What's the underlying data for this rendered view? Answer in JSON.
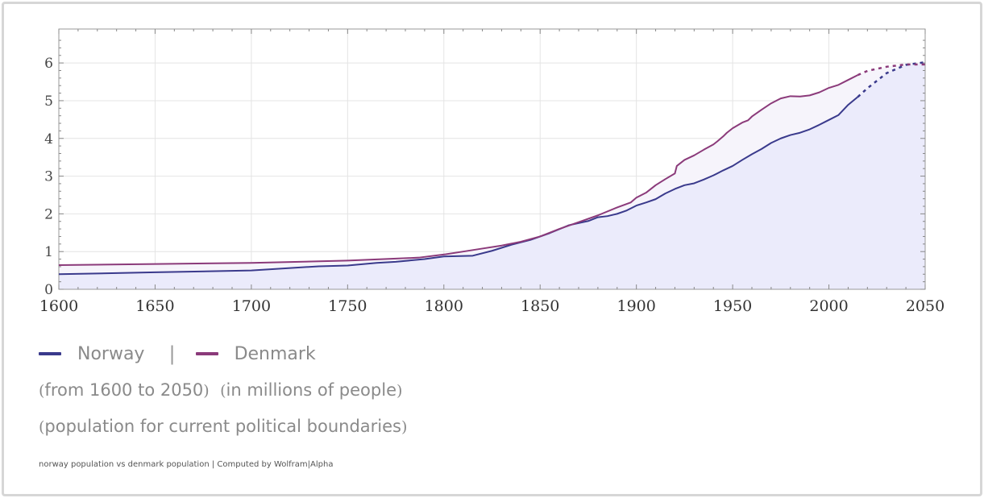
{
  "chart_data": {
    "type": "line",
    "title": "",
    "xlabel": "",
    "ylabel": "",
    "xlim": [
      1600,
      2050
    ],
    "ylim": [
      0,
      6.9
    ],
    "x_ticks": [
      "1600",
      "1650",
      "1700",
      "1750",
      "1800",
      "1850",
      "1900",
      "1950",
      "2000",
      "2050"
    ],
    "y_ticks": [
      "0",
      "1",
      "2",
      "3",
      "4",
      "5",
      "6"
    ],
    "grid": true,
    "projection_start_year": 2015,
    "series": [
      {
        "name": "Norway",
        "color": "#3a3a8c",
        "points": [
          [
            1600,
            0.4
          ],
          [
            1650,
            0.45
          ],
          [
            1700,
            0.5
          ],
          [
            1735,
            0.61
          ],
          [
            1750,
            0.63
          ],
          [
            1765,
            0.7
          ],
          [
            1775,
            0.73
          ],
          [
            1790,
            0.8
          ],
          [
            1800,
            0.87
          ],
          [
            1815,
            0.89
          ],
          [
            1825,
            1.02
          ],
          [
            1835,
            1.18
          ],
          [
            1845,
            1.31
          ],
          [
            1855,
            1.49
          ],
          [
            1865,
            1.7
          ],
          [
            1875,
            1.81
          ],
          [
            1880,
            1.91
          ],
          [
            1885,
            1.94
          ],
          [
            1890,
            2.0
          ],
          [
            1895,
            2.09
          ],
          [
            1900,
            2.22
          ],
          [
            1905,
            2.3
          ],
          [
            1910,
            2.39
          ],
          [
            1915,
            2.54
          ],
          [
            1920,
            2.66
          ],
          [
            1925,
            2.76
          ],
          [
            1930,
            2.81
          ],
          [
            1935,
            2.91
          ],
          [
            1940,
            3.02
          ],
          [
            1945,
            3.15
          ],
          [
            1950,
            3.27
          ],
          [
            1955,
            3.43
          ],
          [
            1960,
            3.58
          ],
          [
            1965,
            3.72
          ],
          [
            1970,
            3.88
          ],
          [
            1975,
            4.0
          ],
          [
            1980,
            4.09
          ],
          [
            1985,
            4.15
          ],
          [
            1990,
            4.24
          ],
          [
            1995,
            4.36
          ],
          [
            2000,
            4.49
          ],
          [
            2005,
            4.62
          ],
          [
            2010,
            4.89
          ],
          [
            2015,
            5.1
          ],
          [
            2020,
            5.33
          ],
          [
            2030,
            5.73
          ],
          [
            2040,
            5.95
          ],
          [
            2050,
            6.02
          ]
        ]
      },
      {
        "name": "Denmark",
        "color": "#8b3a7a",
        "points": [
          [
            1600,
            0.64
          ],
          [
            1650,
            0.67
          ],
          [
            1700,
            0.7
          ],
          [
            1750,
            0.76
          ],
          [
            1769,
            0.8
          ],
          [
            1787,
            0.84
          ],
          [
            1801,
            0.93
          ],
          [
            1810,
            1.0
          ],
          [
            1820,
            1.08
          ],
          [
            1830,
            1.16
          ],
          [
            1840,
            1.26
          ],
          [
            1850,
            1.4
          ],
          [
            1860,
            1.6
          ],
          [
            1870,
            1.78
          ],
          [
            1880,
            1.96
          ],
          [
            1890,
            2.17
          ],
          [
            1897,
            2.3
          ],
          [
            1900,
            2.43
          ],
          [
            1905,
            2.56
          ],
          [
            1910,
            2.76
          ],
          [
            1915,
            2.92
          ],
          [
            1920,
            3.07
          ],
          [
            1921,
            3.27
          ],
          [
            1925,
            3.43
          ],
          [
            1930,
            3.55
          ],
          [
            1935,
            3.7
          ],
          [
            1940,
            3.84
          ],
          [
            1942,
            3.92
          ],
          [
            1945,
            4.05
          ],
          [
            1947,
            4.15
          ],
          [
            1950,
            4.27
          ],
          [
            1955,
            4.42
          ],
          [
            1958,
            4.48
          ],
          [
            1960,
            4.58
          ],
          [
            1965,
            4.76
          ],
          [
            1970,
            4.93
          ],
          [
            1975,
            5.06
          ],
          [
            1980,
            5.12
          ],
          [
            1985,
            5.11
          ],
          [
            1990,
            5.14
          ],
          [
            1995,
            5.22
          ],
          [
            2000,
            5.34
          ],
          [
            2005,
            5.42
          ],
          [
            2010,
            5.55
          ],
          [
            2015,
            5.68
          ],
          [
            2020,
            5.79
          ],
          [
            2030,
            5.9
          ],
          [
            2040,
            5.96
          ],
          [
            2050,
            5.96
          ]
        ]
      }
    ]
  },
  "legend": {
    "items": [
      {
        "name": "Norway",
        "color": "#3a3a8c"
      },
      {
        "name": "Denmark",
        "color": "#8b3a7a"
      }
    ],
    "separator": "|"
  },
  "notes": {
    "range_left": "(",
    "range_text": "from 1600 to 2050",
    "range_right": ")",
    "units_left": "(",
    "units_text": "in millions of people",
    "units_right": ")",
    "boundary_left": "(",
    "boundary_text": "population for current political boundaries",
    "boundary_right": ")"
  },
  "footer": "norway population vs denmark population | Computed by Wolfram|Alpha"
}
